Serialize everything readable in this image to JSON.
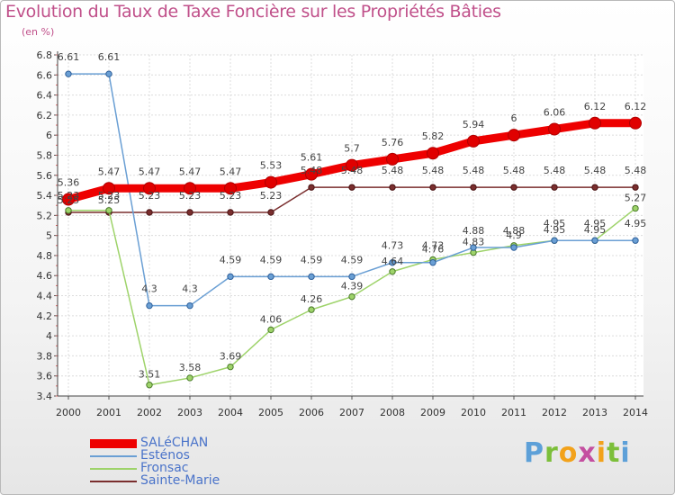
{
  "header": {
    "title": "Evolution du Taux de Taxe Foncière sur les Propriétés Bâties",
    "unit": "(en %)"
  },
  "logo": {
    "text": "Proxiti",
    "colors": [
      "#5da0d8",
      "#7cbf3a",
      "#f2a21b",
      "#c44fa0"
    ]
  },
  "chart_data": {
    "type": "line",
    "title": "Evolution du Taux de Taxe Foncière sur les Propriétés Bâties",
    "ylabel": "(en %)",
    "xlabel": "",
    "x": [
      "2000",
      "2001",
      "2002",
      "2003",
      "2004",
      "2005",
      "2006",
      "2007",
      "2008",
      "2009",
      "2010",
      "2011",
      "2012",
      "2013",
      "2014"
    ],
    "ylim": [
      3.4,
      6.8
    ],
    "yticks": [
      "3.4",
      "3.6",
      "3.8",
      "4",
      "4.2",
      "4.4",
      "4.6",
      "4.8",
      "5",
      "5.2",
      "5.4",
      "5.6",
      "5.8",
      "6",
      "6.2",
      "6.4",
      "6.6",
      "6.8"
    ],
    "grid": true,
    "legend_position": "bottom-left",
    "series": [
      {
        "name": "SALéCHAN",
        "color": "#ee0000",
        "values": [
          5.36,
          5.47,
          5.47,
          5.47,
          5.47,
          5.53,
          5.61,
          5.7,
          5.76,
          5.82,
          5.94,
          6,
          6.06,
          6.12,
          6.12
        ],
        "labels": [
          "5.36",
          "5.47",
          "5.47",
          "5.47",
          "5.47",
          "5.53",
          "5.61",
          "5.7",
          "5.76",
          "5.82",
          "5.94",
          "6",
          "6.06",
          "6.12",
          "6.12"
        ]
      },
      {
        "name": "Esténos",
        "color": "#6a9fd4",
        "values": [
          6.61,
          6.61,
          4.3,
          4.3,
          4.59,
          4.59,
          4.59,
          4.59,
          4.73,
          4.73,
          4.88,
          4.88,
          4.95,
          4.95,
          4.95
        ],
        "labels": [
          "6.61",
          "6.61",
          "4.3",
          "4.3",
          "4.59",
          "4.59",
          "4.59",
          "4.59",
          "4.73",
          "4.73",
          "4.88",
          "4.88",
          "4.95",
          "4.95",
          "4.95"
        ]
      },
      {
        "name": "Fronsac",
        "color": "#9ed36a",
        "values": [
          5.25,
          5.25,
          3.51,
          3.58,
          3.69,
          4.06,
          4.26,
          4.39,
          4.64,
          4.76,
          4.83,
          4.9,
          4.95,
          4.95,
          5.27
        ],
        "labels": [
          "5.25",
          "5.25",
          "3.51",
          "3.58",
          "3.69",
          "4.06",
          "4.26",
          "4.39",
          "4.64",
          "4.76",
          "4.83",
          "4.9",
          "4.95",
          "4.95",
          "5.27"
        ]
      },
      {
        "name": "Sainte-Marie",
        "color": "#7a2e2e",
        "values": [
          5.23,
          5.23,
          5.23,
          5.23,
          5.23,
          5.23,
          5.48,
          5.48,
          5.48,
          5.48,
          5.48,
          5.48,
          5.48,
          5.48,
          5.48
        ],
        "labels": [
          "5.23",
          "5.23",
          "5.23",
          "5.23",
          "5.23",
          "5.23",
          "5.48",
          "5.48",
          "5.48",
          "5.48",
          "5.48",
          "5.48",
          "5.48",
          "5.48",
          "5.48"
        ]
      }
    ]
  }
}
